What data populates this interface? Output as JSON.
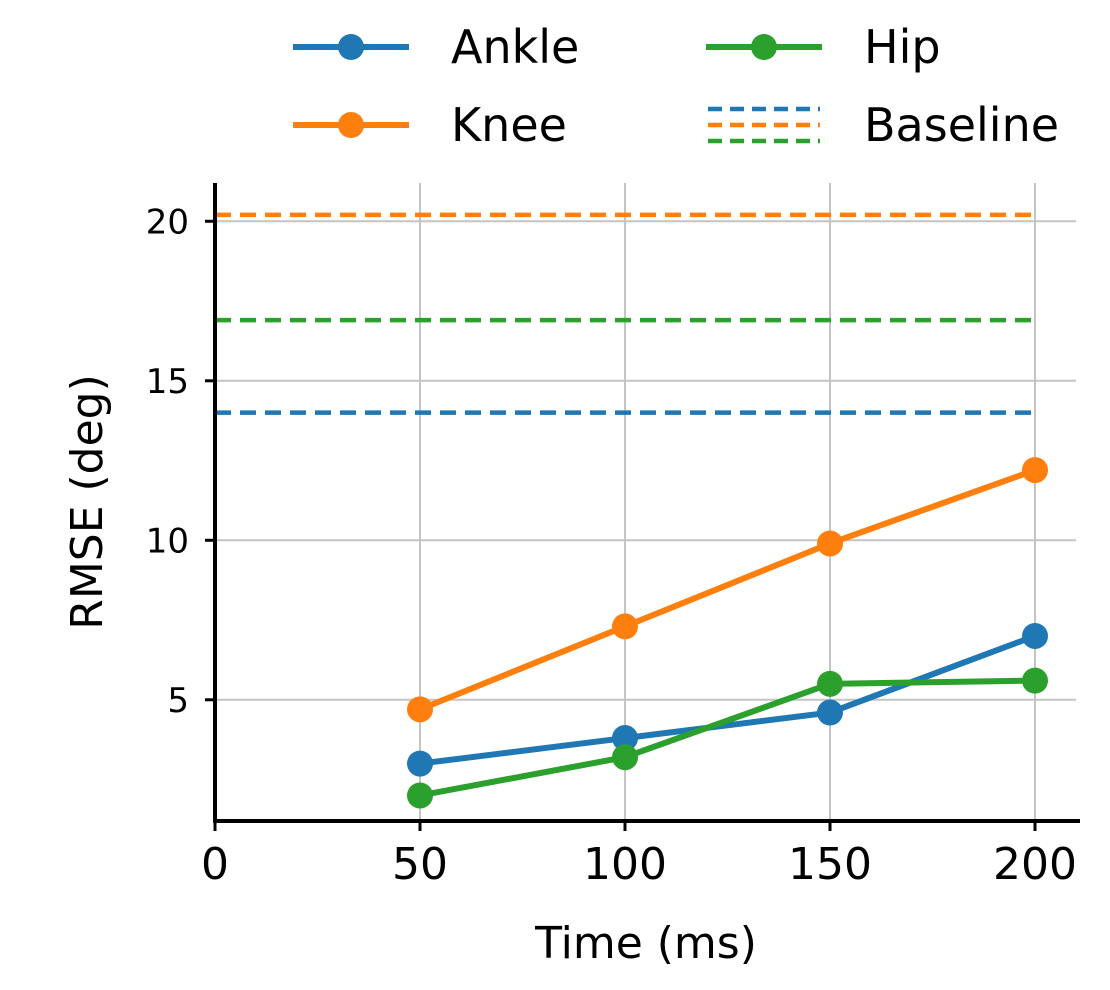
{
  "chart_data": {
    "type": "line",
    "xlabel": "Time (ms)",
    "ylabel": "RMSE (deg)",
    "xlim": [
      0,
      210
    ],
    "ylim": [
      1.2,
      21.2
    ],
    "xticks": [
      0,
      50,
      100,
      150,
      200
    ],
    "yticks": [
      5,
      10,
      15,
      20
    ],
    "grid": true,
    "legend_position": "top-center",
    "x": [
      50,
      100,
      150,
      200
    ],
    "series": [
      {
        "name": "Ankle",
        "color": "#1f77b4",
        "values": [
          3.0,
          3.8,
          4.6,
          7.0
        ]
      },
      {
        "name": "Knee",
        "color": "#ff7f0e",
        "values": [
          4.7,
          7.3,
          9.9,
          12.2
        ]
      },
      {
        "name": "Hip",
        "color": "#2ca02c",
        "values": [
          2.0,
          3.2,
          5.5,
          5.6
        ]
      }
    ],
    "baselines": [
      {
        "series": "Ankle",
        "color": "#1f77b4",
        "value": 14.0,
        "x_range": [
          0,
          200
        ]
      },
      {
        "series": "Knee",
        "color": "#ff7f0e",
        "value": 20.2,
        "x_range": [
          0,
          200
        ]
      },
      {
        "series": "Hip",
        "color": "#2ca02c",
        "value": 16.9,
        "x_range": [
          0,
          200
        ]
      }
    ],
    "legend": [
      {
        "label": "Ankle",
        "style": "line-marker",
        "colors": [
          "#1f77b4"
        ]
      },
      {
        "label": "Knee",
        "style": "line-marker",
        "colors": [
          "#ff7f0e"
        ]
      },
      {
        "label": "Hip",
        "style": "line-marker",
        "colors": [
          "#2ca02c"
        ]
      },
      {
        "label": "Baseline",
        "style": "dashed",
        "colors": [
          "#1f77b4",
          "#ff7f0e",
          "#2ca02c"
        ]
      }
    ]
  }
}
